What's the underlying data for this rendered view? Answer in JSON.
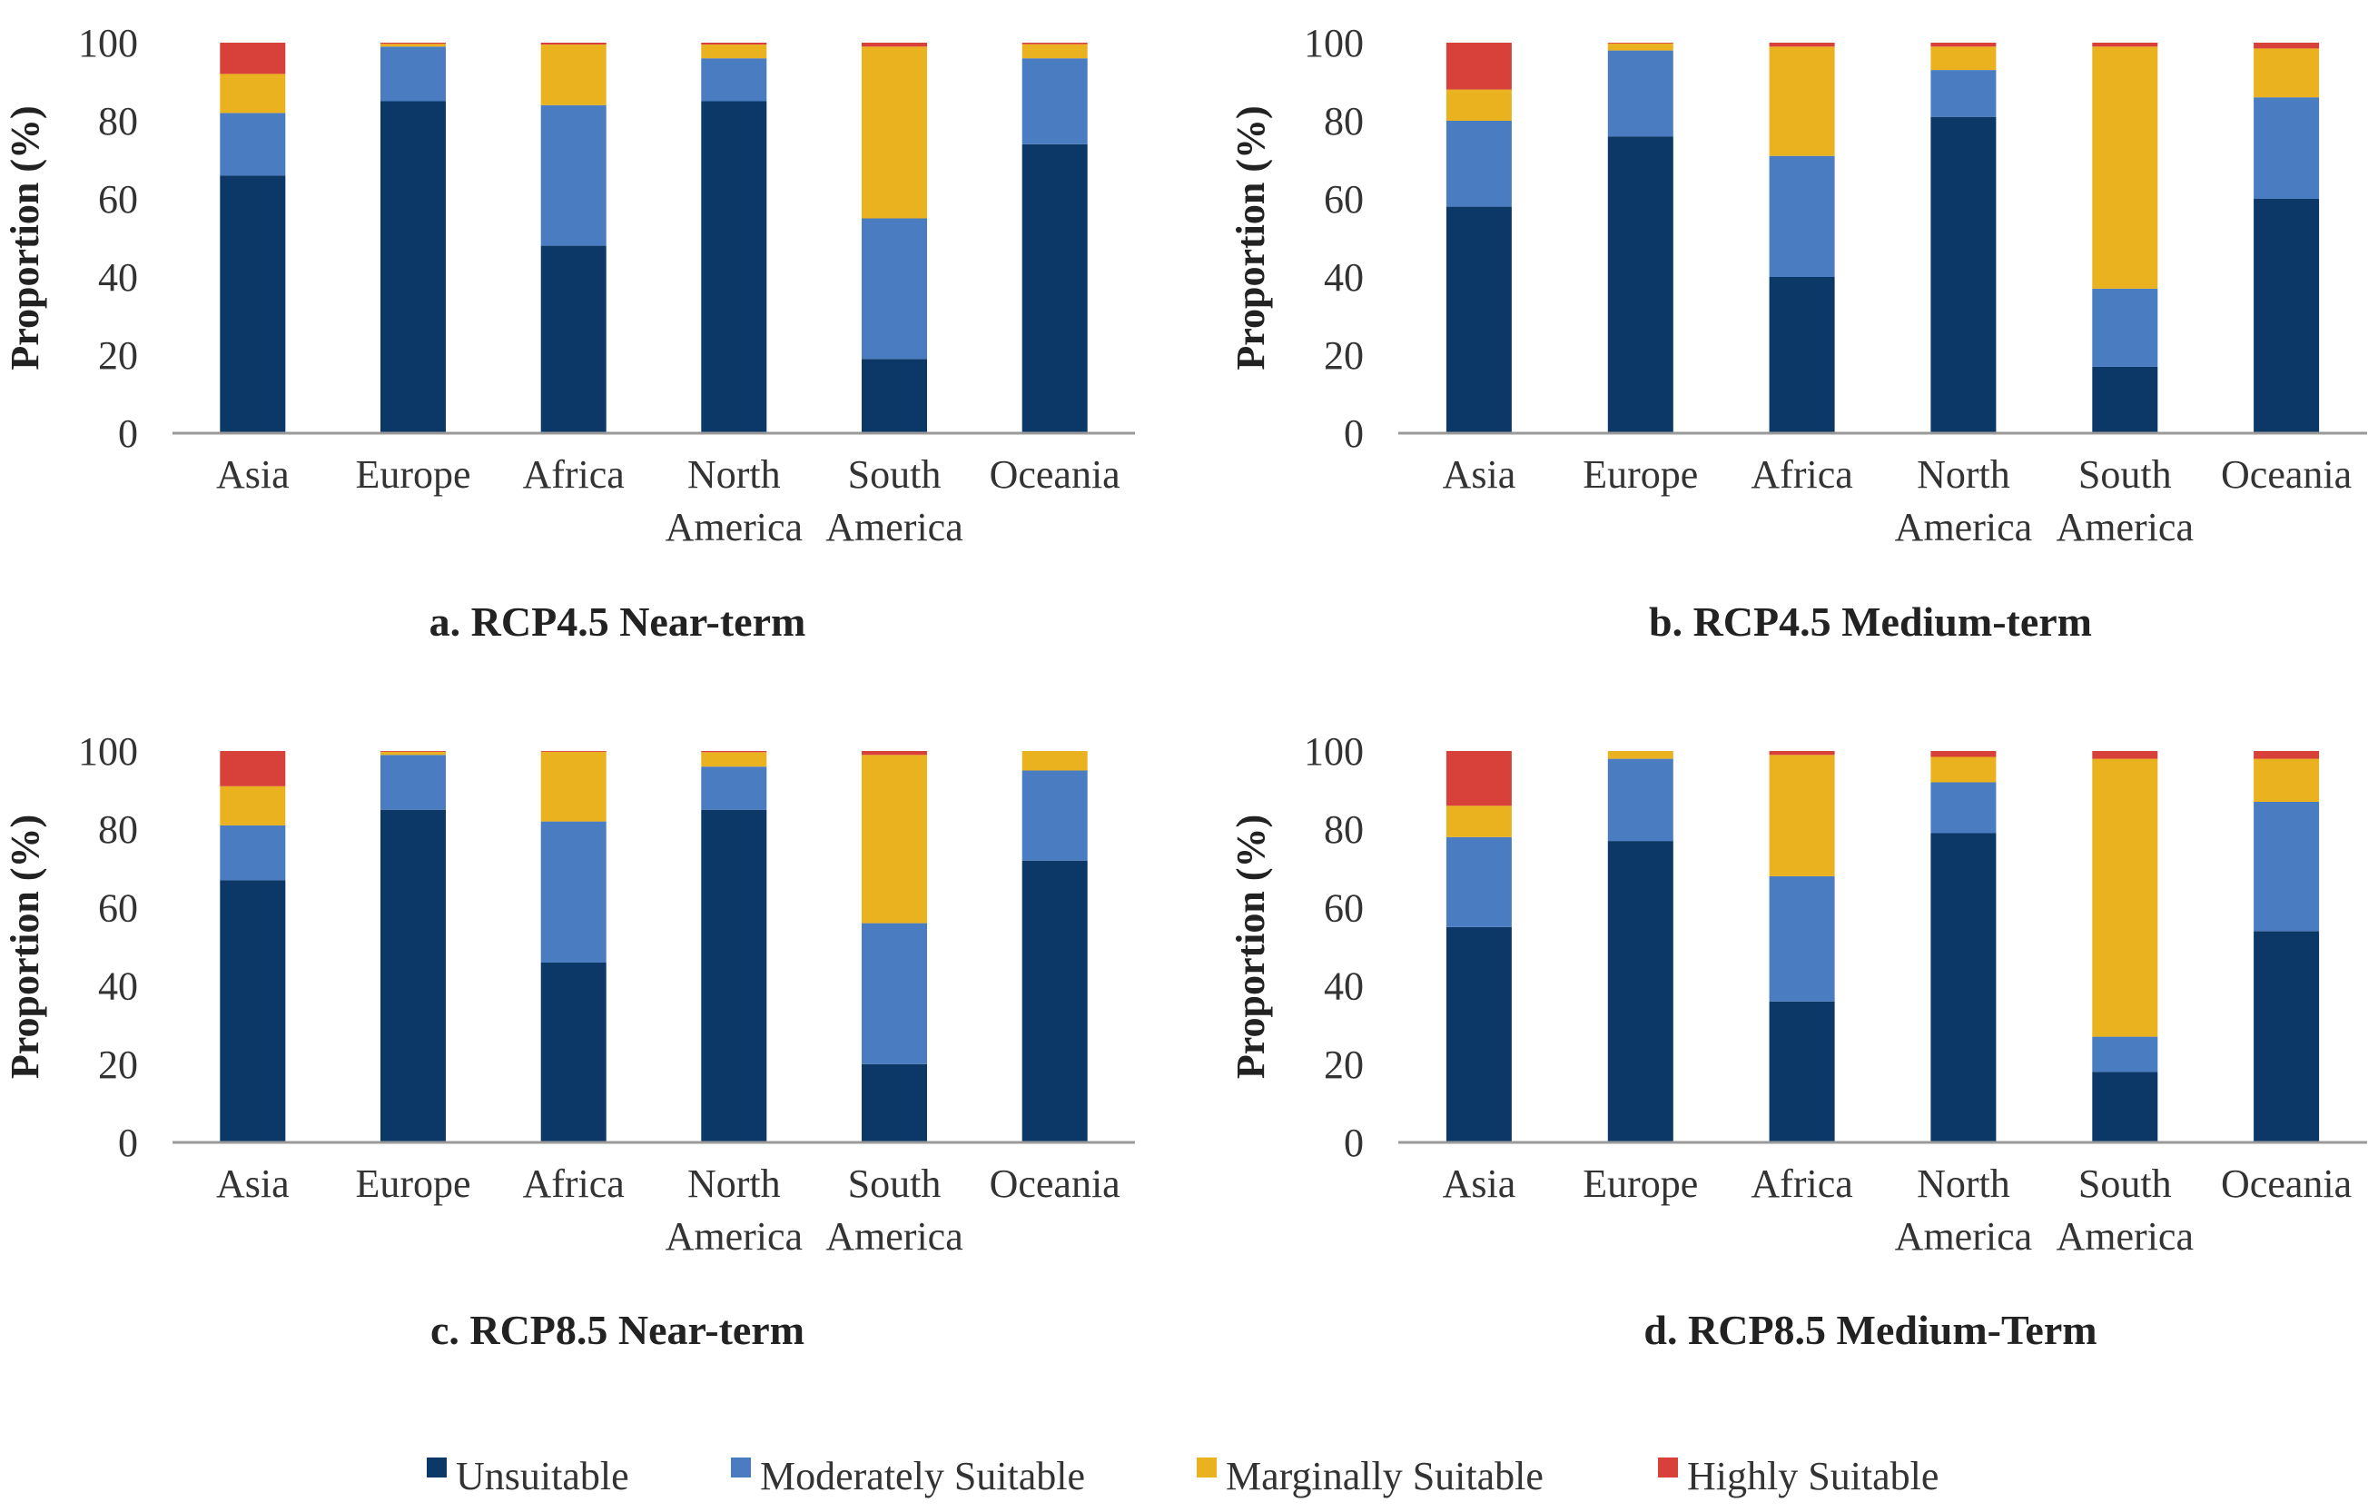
{
  "series_names": [
    "Unsuitable",
    "Moderately Suitable",
    "Marginally Suitable",
    "Highly Suitable"
  ],
  "colors": {
    "Unsuitable": "#0b3866",
    "Moderately Suitable": "#4a7cc2",
    "Marginally Suitable": "#eab21e",
    "Highly Suitable": "#d8403a",
    "axis": "#9a9a9a"
  },
  "chart_data": [
    {
      "type": "bar",
      "stacked": true,
      "title": "a. RCP4.5 Near-term",
      "ylabel": "Proportion (%)",
      "ylim": [
        0,
        100
      ],
      "yticks": [
        "0",
        "20",
        "40",
        "60",
        "80",
        "100"
      ],
      "categories": [
        "Asia",
        "Europe",
        "Africa",
        "North America",
        "South America",
        "Oceania"
      ],
      "category_lines": [
        [
          "Asia"
        ],
        [
          "Europe"
        ],
        [
          "Africa"
        ],
        [
          "North",
          "America"
        ],
        [
          "South",
          "America"
        ],
        [
          "Oceania"
        ]
      ],
      "series": [
        {
          "name": "Unsuitable",
          "values": [
            66,
            85,
            48,
            85,
            19,
            74
          ]
        },
        {
          "name": "Moderately Suitable",
          "values": [
            16,
            14,
            36,
            11,
            36,
            22
          ]
        },
        {
          "name": "Marginally Suitable",
          "values": [
            10,
            0.7,
            15.5,
            3.5,
            44,
            3.6
          ]
        },
        {
          "name": "Highly Suitable",
          "values": [
            8,
            0.3,
            0.5,
            0.5,
            1,
            0.4
          ]
        }
      ]
    },
    {
      "type": "bar",
      "stacked": true,
      "title": "b. RCP4.5 Medium-term",
      "ylabel": "Proportion (%)",
      "ylim": [
        0,
        100
      ],
      "yticks": [
        "0",
        "20",
        "40",
        "60",
        "80",
        "100"
      ],
      "categories": [
        "Asia",
        "Europe",
        "Africa",
        "North America",
        "South America",
        "Oceania"
      ],
      "category_lines": [
        [
          "Asia"
        ],
        [
          "Europe"
        ],
        [
          "Africa"
        ],
        [
          "North",
          "America"
        ],
        [
          "South",
          "America"
        ],
        [
          "Oceania"
        ]
      ],
      "series": [
        {
          "name": "Unsuitable",
          "values": [
            58,
            76,
            40,
            81,
            17,
            60
          ]
        },
        {
          "name": "Moderately Suitable",
          "values": [
            22,
            22,
            31,
            12,
            20,
            26
          ]
        },
        {
          "name": "Marginally Suitable",
          "values": [
            8,
            1.8,
            28,
            6,
            62,
            12.5
          ]
        },
        {
          "name": "Highly Suitable",
          "values": [
            12,
            0.2,
            1,
            1,
            1,
            1.5
          ]
        }
      ]
    },
    {
      "type": "bar",
      "stacked": true,
      "title": "c. RCP8.5 Near-term",
      "ylabel": "Proportion (%)",
      "ylim": [
        0,
        100
      ],
      "yticks": [
        "0",
        "20",
        "40",
        "60",
        "80",
        "100"
      ],
      "categories": [
        "Asia",
        "Europe",
        "Africa",
        "North America",
        "South America",
        "Oceania"
      ],
      "category_lines": [
        [
          "Asia"
        ],
        [
          "Europe"
        ],
        [
          "Africa"
        ],
        [
          "North",
          "America"
        ],
        [
          "South",
          "America"
        ],
        [
          "Oceania"
        ]
      ],
      "series": [
        {
          "name": "Unsuitable",
          "values": [
            67,
            85,
            46,
            85,
            20,
            72
          ]
        },
        {
          "name": "Moderately Suitable",
          "values": [
            14,
            14,
            36,
            11,
            36,
            23
          ]
        },
        {
          "name": "Marginally Suitable",
          "values": [
            10,
            0.8,
            17.8,
            3.7,
            43,
            5
          ]
        },
        {
          "name": "Highly Suitable",
          "values": [
            9,
            0.2,
            0.2,
            0.3,
            1,
            0
          ]
        }
      ]
    },
    {
      "type": "bar",
      "stacked": true,
      "title": "d. RCP8.5 Medium-Term",
      "ylabel": "Proportion (%)",
      "ylim": [
        0,
        100
      ],
      "yticks": [
        "0",
        "20",
        "40",
        "60",
        "80",
        "100"
      ],
      "categories": [
        "Asia",
        "Europe",
        "Africa",
        "North America",
        "South America",
        "Oceania"
      ],
      "category_lines": [
        [
          "Asia"
        ],
        [
          "Europe"
        ],
        [
          "Africa"
        ],
        [
          "North",
          "America"
        ],
        [
          "South",
          "America"
        ],
        [
          "Oceania"
        ]
      ],
      "series": [
        {
          "name": "Unsuitable",
          "values": [
            55,
            77,
            36,
            79,
            18,
            54
          ]
        },
        {
          "name": "Moderately Suitable",
          "values": [
            23,
            21,
            32,
            13,
            9,
            33
          ]
        },
        {
          "name": "Marginally Suitable",
          "values": [
            8,
            2,
            31,
            6.5,
            71,
            11
          ]
        },
        {
          "name": "Highly Suitable",
          "values": [
            14,
            0,
            1,
            1.5,
            2,
            2
          ]
        }
      ]
    }
  ]
}
